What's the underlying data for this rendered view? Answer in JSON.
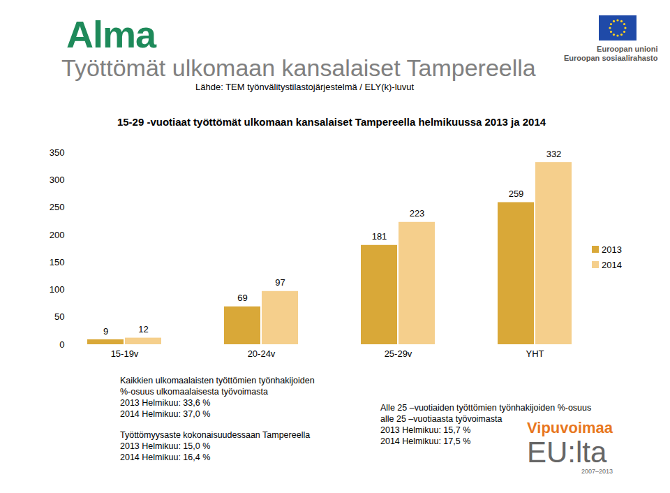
{
  "page": {
    "logo": "Alma",
    "title": "Työttömät ulkomaan kansalaiset Tampereella",
    "source": "Lähde: TEM työnvälitystilastojärjestelmä / ELY(k)-luvut",
    "eu_logo": [
      "Euroopan unioni",
      "Euroopan sosiaalirahasto"
    ],
    "notes": [
      [
        "Kaikkien ulkomaalaisten työttömien työnhakijoiden",
        "%-osuus ulkomaalaisesta työvoimasta",
        "2013 Helmikuu: 33,6 %",
        "2014 Helmikuu: 37,0 %"
      ],
      [
        "Työttömyysaste kokonaisuudessaan Tampereella",
        "2013 Helmikuu: 15,0 %",
        "2014 Helmikuu: 16,4 %"
      ],
      [
        "Alle 25 –vuotiaiden työttömien työnhakijoiden %-osuus",
        "alle 25 –vuotiaasta työvoimasta",
        "2013 Helmikuu: 15,7 %",
        "2014 Helmikuu: 17,5 %"
      ]
    ],
    "footer_logo": [
      "Vipuvoimaa",
      "EU:lta",
      "2007–2013"
    ]
  },
  "chart_data": {
    "type": "bar",
    "title": "15-29 -vuotiaat työttömät ulkomaan kansalaiset Tampereella helmikuussa 2013 ja 2014",
    "categories": [
      "15-19v",
      "20-24v",
      "25-29v",
      "YHT"
    ],
    "series": [
      {
        "name": "2013",
        "color": "#d9a838",
        "values": [
          9,
          69,
          181,
          259
        ]
      },
      {
        "name": "2014",
        "color": "#f5cf8c",
        "values": [
          12,
          97,
          223,
          332
        ]
      }
    ],
    "ylim": [
      0,
      350
    ],
    "yticks": [
      0,
      50,
      100,
      150,
      200,
      250,
      300,
      350
    ],
    "grid": false,
    "legend": "right",
    "data_labels": true
  }
}
